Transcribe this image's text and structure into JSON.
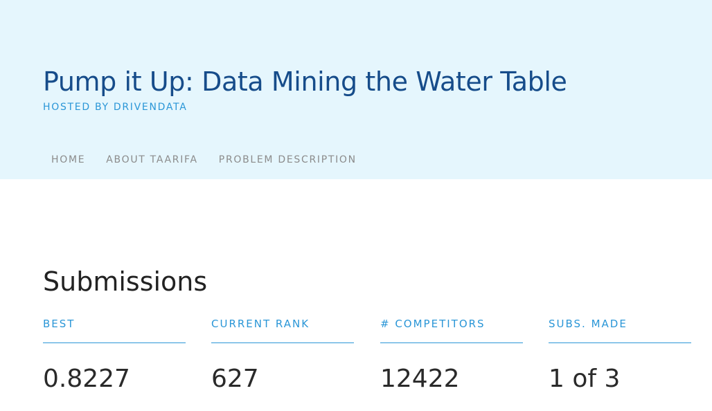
{
  "header": {
    "title": "Pump it Up: Data Mining the Water Table",
    "hosted_by": "HOSTED BY DRIVENDATA",
    "nav": [
      {
        "label": "HOME"
      },
      {
        "label": "ABOUT TAARIFA"
      },
      {
        "label": "PROBLEM DESCRIPTION"
      }
    ]
  },
  "submissions": {
    "title": "Submissions",
    "stats": [
      {
        "label": "BEST",
        "value": "0.8227"
      },
      {
        "label": "CURRENT RANK",
        "value": "627"
      },
      {
        "label": "# COMPETITORS",
        "value": "12422"
      },
      {
        "label": "SUBS. MADE",
        "value": "1 of 3"
      }
    ]
  },
  "colors": {
    "hero_background": "#e5f6fd",
    "title": "#164c8a",
    "accent": "#2a96d7",
    "nav_text": "#8b8b8b"
  }
}
